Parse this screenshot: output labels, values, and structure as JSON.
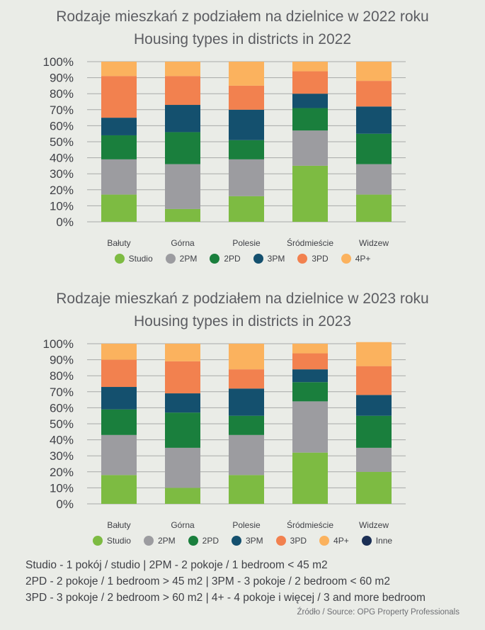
{
  "chart_data": [
    {
      "type": "bar",
      "stacked": true,
      "title": "Rodzaje mieszkań z podziałem na dzielnice w 2022 roku",
      "subtitle": "Housing types in districts in 2022",
      "categories": [
        "Bałuty",
        "Górna",
        "Polesie",
        "Śródmieście",
        "Widzew"
      ],
      "ylim": [
        0,
        100
      ],
      "yticks": [
        "0%",
        "10%",
        "20%",
        "30%",
        "40%",
        "50%",
        "60%",
        "70%",
        "80%",
        "90%",
        "100%"
      ],
      "grid": true,
      "legend_position": "bottom",
      "series": [
        {
          "name": "Studio",
          "color": "#7dbb42",
          "values": [
            17,
            8,
            16,
            35,
            17
          ]
        },
        {
          "name": "2PM",
          "color": "#9c9ca0",
          "values": [
            22,
            28,
            23,
            22,
            19
          ]
        },
        {
          "name": "2PD",
          "color": "#1a7f3d",
          "values": [
            15,
            20,
            12,
            14,
            19
          ]
        },
        {
          "name": "3PM",
          "color": "#14506e",
          "values": [
            11,
            17,
            19,
            9,
            17
          ]
        },
        {
          "name": "3PD",
          "color": "#f2814f",
          "values": [
            26,
            18,
            15,
            14,
            16
          ]
        },
        {
          "name": "4P+",
          "color": "#fbb25e",
          "values": [
            9,
            9,
            15,
            6,
            12
          ]
        }
      ]
    },
    {
      "type": "bar",
      "stacked": true,
      "title": "Rodzaje mieszkań z podziałem na dzielnice w 2023 roku",
      "subtitle": "Housing types in districts in 2023",
      "categories": [
        "Bałuty",
        "Górna",
        "Polesie",
        "Śródmieście",
        "Widzew"
      ],
      "ylim": [
        0,
        100
      ],
      "yticks": [
        "0%",
        "10%",
        "20%",
        "30%",
        "40%",
        "50%",
        "60%",
        "70%",
        "80%",
        "90%",
        "100%"
      ],
      "grid": true,
      "legend_position": "bottom",
      "series": [
        {
          "name": "Studio",
          "color": "#7dbb42",
          "values": [
            18,
            10,
            18,
            32,
            20
          ]
        },
        {
          "name": "2PM",
          "color": "#9c9ca0",
          "values": [
            25,
            25,
            25,
            32,
            15
          ]
        },
        {
          "name": "2PD",
          "color": "#1a7f3d",
          "values": [
            16,
            22,
            12,
            12,
            20
          ]
        },
        {
          "name": "3PM",
          "color": "#14506e",
          "values": [
            14,
            12,
            17,
            8,
            13
          ]
        },
        {
          "name": "3PD",
          "color": "#f2814f",
          "values": [
            17,
            20,
            12,
            10,
            18
          ]
        },
        {
          "name": "4P+",
          "color": "#fbb25e",
          "values": [
            10,
            11,
            16,
            6,
            15
          ]
        },
        {
          "name": "Inne",
          "color": "#1b2f55",
          "values": [
            0,
            0,
            0,
            0,
            0
          ]
        }
      ]
    }
  ],
  "footnotes": [
    "Studio - 1 pokój / studio  | 2PM - 2 pokoje / 1 bedroom < 45 m2",
    "2PD  -  2  pokoje  /  1 bedroom > 45 m2  |  3PM  -  3  pokoje  /  2 bedroom < 60 m2",
    "3PD - 3 pokoje / 2 bedroom > 60 m2  | 4+ - 4 pokoje i więcej / 3 and more bedroom"
  ],
  "source": "Źródło / Source: OPG Property Professionals"
}
